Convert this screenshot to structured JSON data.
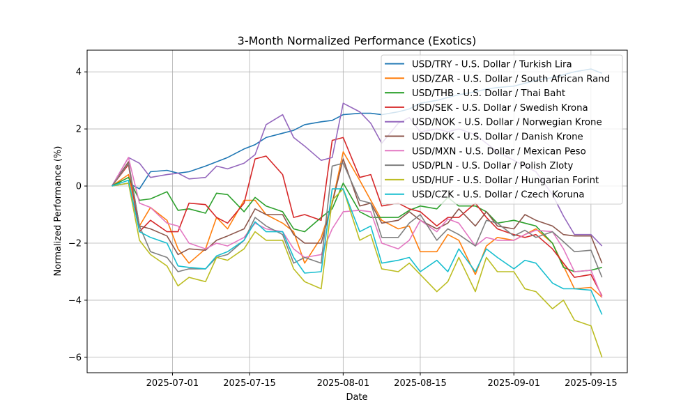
{
  "chart_data": {
    "type": "line",
    "title": "3-Month Normalized Performance (Exotics)",
    "xlabel": "Date",
    "ylabel": "Normalized Performance (%)",
    "xlim": [
      "2025-06-15",
      "2025-09-21"
    ],
    "ylim": [
      -6.54,
      4.76
    ],
    "x_ticks": [
      "2025-07-01",
      "2025-07-15",
      "2025-08-01",
      "2025-08-15",
      "2025-09-01",
      "2025-09-15"
    ],
    "y_ticks": [
      -6,
      -4,
      -2,
      0,
      2,
      4
    ],
    "grid": true,
    "legend_placement": "top-right",
    "x": [
      "2025-06-20",
      "2025-06-23",
      "2025-06-25",
      "2025-06-27",
      "2025-06-30",
      "2025-07-02",
      "2025-07-04",
      "2025-07-07",
      "2025-07-09",
      "2025-07-11",
      "2025-07-14",
      "2025-07-16",
      "2025-07-18",
      "2025-07-21",
      "2025-07-23",
      "2025-07-25",
      "2025-07-28",
      "2025-07-30",
      "2025-08-01",
      "2025-08-04",
      "2025-08-06",
      "2025-08-08",
      "2025-08-11",
      "2025-08-13",
      "2025-08-15",
      "2025-08-18",
      "2025-08-20",
      "2025-08-22",
      "2025-08-25",
      "2025-08-27",
      "2025-08-29",
      "2025-09-01",
      "2025-09-03",
      "2025-09-05",
      "2025-09-08",
      "2025-09-10",
      "2025-09-12",
      "2025-09-15",
      "2025-09-17"
    ],
    "series": [
      {
        "name": "USD/TRY - U.S. Dollar / Turkish Lira",
        "color": "#1f77b4",
        "values": [
          0,
          0.1,
          -0.1,
          0.5,
          0.55,
          0.45,
          0.5,
          0.7,
          0.85,
          1.0,
          1.3,
          1.45,
          1.7,
          1.85,
          1.95,
          2.15,
          2.25,
          2.3,
          2.5,
          2.55,
          2.55,
          2.5,
          2.6,
          2.7,
          2.9,
          3.0,
          3.1,
          3.2,
          3.3,
          3.4,
          3.45,
          3.5,
          3.6,
          3.7,
          3.8,
          3.9,
          4.0,
          4.1,
          3.95
        ]
      },
      {
        "name": "USD/ZAR - U.S. Dollar / South African Rand",
        "color": "#ff7f0e",
        "values": [
          0,
          0.4,
          -1.4,
          -0.75,
          -1.2,
          -2.2,
          -2.7,
          -2.2,
          -1.1,
          -1.5,
          -0.5,
          -0.5,
          -1.0,
          -1.3,
          -1.6,
          -2.7,
          -1.8,
          -0.6,
          1.2,
          0.2,
          -0.5,
          -1.2,
          -1.5,
          -1.4,
          -2.3,
          -2.3,
          -1.7,
          -1.9,
          -3.1,
          -2.1,
          -1.8,
          -1.9,
          -1.7,
          -1.5,
          -2.0,
          -2.8,
          -3.6,
          -3.55,
          -3.9
        ]
      },
      {
        "name": "USD/THB - U.S. Dollar / Thai Baht",
        "color": "#2ca02c",
        "values": [
          0,
          0.3,
          -0.5,
          -0.45,
          -0.2,
          -0.85,
          -0.8,
          -0.95,
          -0.25,
          -0.3,
          -0.9,
          -0.4,
          -0.7,
          -0.9,
          -1.5,
          -1.6,
          -1.1,
          -0.8,
          0.1,
          -0.9,
          -1.1,
          -1.1,
          -1.1,
          -0.85,
          -0.7,
          -0.8,
          -0.4,
          -0.7,
          -0.7,
          -0.9,
          -1.3,
          -1.2,
          -1.3,
          -1.4,
          -2.0,
          -2.85,
          -3.0,
          -2.95,
          -2.85
        ]
      },
      {
        "name": "USD/SEK - U.S. Dollar / Swedish Krona",
        "color": "#d62728",
        "values": [
          0,
          0.75,
          -1.6,
          -1.2,
          -1.6,
          -1.6,
          -0.6,
          -0.65,
          -1.1,
          -1.3,
          -0.6,
          0.95,
          1.05,
          0.4,
          -1.1,
          -1.0,
          -1.2,
          1.6,
          1.7,
          0.3,
          0.4,
          -0.7,
          -0.6,
          -0.8,
          -0.9,
          -1.4,
          -1.1,
          -1.1,
          -0.6,
          -1.1,
          -1.5,
          -1.7,
          -1.8,
          -1.7,
          -2.2,
          -2.7,
          -3.2,
          -3.1,
          -3.85
        ]
      },
      {
        "name": "USD/NOK - U.S. Dollar / Norwegian Krone",
        "color": "#9467bd",
        "values": [
          0,
          1.0,
          0.8,
          0.3,
          0.4,
          0.45,
          0.25,
          0.3,
          0.7,
          0.6,
          0.8,
          1.1,
          2.15,
          2.5,
          1.7,
          1.4,
          0.9,
          1.0,
          2.9,
          2.6,
          2.2,
          1.5,
          2.2,
          2.4,
          1.9,
          2.0,
          1.9,
          2.0,
          1.8,
          1.5,
          1.2,
          0.9,
          0.7,
          0.5,
          -0.3,
          -1.05,
          -1.7,
          -1.7,
          -2.1
        ]
      },
      {
        "name": "USD/DKK - U.S. Dollar / Danish Krone",
        "color": "#8c564b",
        "values": [
          0,
          0.85,
          -1.4,
          -1.5,
          -1.75,
          -2.4,
          -2.2,
          -2.25,
          -1.9,
          -1.75,
          -1.5,
          -0.8,
          -1.0,
          -1.0,
          -1.7,
          -2.0,
          -2.0,
          -0.6,
          0.95,
          -0.7,
          -0.6,
          -1.3,
          -1.2,
          -0.9,
          -1.2,
          -1.5,
          -1.3,
          -0.8,
          -1.4,
          -0.9,
          -1.4,
          -1.5,
          -1.0,
          -1.2,
          -1.4,
          -1.7,
          -1.75,
          -1.75,
          -2.7
        ]
      },
      {
        "name": "USD/MXN - U.S. Dollar / Mexican Peso",
        "color": "#e377c2",
        "values": [
          0,
          1.0,
          -0.6,
          -0.75,
          -1.3,
          -1.4,
          -2.0,
          -2.2,
          -2.0,
          -2.1,
          -1.8,
          -1.3,
          -1.5,
          -1.6,
          -2.2,
          -2.5,
          -2.4,
          -1.5,
          -0.9,
          -0.85,
          -0.9,
          -2.0,
          -2.2,
          -1.9,
          -1.2,
          -1.6,
          -1.15,
          -1.3,
          -2.1,
          -1.8,
          -1.9,
          -1.9,
          -1.7,
          -1.55,
          -1.6,
          -2.2,
          -3.0,
          -2.95,
          -3.9
        ]
      },
      {
        "name": "USD/PLN - U.S. Dollar / Polish Zloty",
        "color": "#7f7f7f",
        "values": [
          0,
          0.8,
          -1.4,
          -2.3,
          -2.5,
          -3.0,
          -2.9,
          -2.9,
          -2.5,
          -2.4,
          -1.9,
          -1.1,
          -1.4,
          -1.7,
          -2.7,
          -2.5,
          -2.7,
          0.7,
          0.8,
          -0.5,
          -0.6,
          -1.8,
          -1.8,
          -1.3,
          -1.0,
          -1.9,
          -1.5,
          -1.7,
          -2.1,
          -1.2,
          -1.3,
          -1.75,
          -1.55,
          -1.8,
          -1.6,
          -1.95,
          -2.3,
          -2.25,
          -3.2
        ]
      },
      {
        "name": "USD/HUF - U.S. Dollar / Hungarian Forint",
        "color": "#bcbd22",
        "values": [
          0,
          0.1,
          -1.9,
          -2.4,
          -2.8,
          -3.5,
          -3.2,
          -3.35,
          -2.5,
          -2.6,
          -2.2,
          -1.6,
          -1.9,
          -1.9,
          -2.9,
          -3.35,
          -3.6,
          -0.5,
          -0.1,
          -1.9,
          -1.7,
          -2.9,
          -3.0,
          -2.7,
          -3.1,
          -3.7,
          -3.35,
          -2.5,
          -3.7,
          -2.5,
          -3.0,
          -3.0,
          -3.6,
          -3.7,
          -4.3,
          -4.0,
          -4.7,
          -4.9,
          -6.0
        ]
      },
      {
        "name": "USD/CZK - U.S. Dollar / Czech Koruna",
        "color": "#17becf",
        "values": [
          0,
          0.2,
          -1.6,
          -1.8,
          -2.0,
          -2.8,
          -2.85,
          -2.9,
          -2.45,
          -2.3,
          -1.9,
          -1.25,
          -1.6,
          -1.6,
          -2.5,
          -3.05,
          -3.0,
          -0.1,
          -0.1,
          -1.6,
          -1.4,
          -2.7,
          -2.6,
          -2.5,
          -3.0,
          -2.6,
          -3.0,
          -2.2,
          -3.0,
          -2.2,
          -2.5,
          -2.9,
          -2.6,
          -2.7,
          -3.4,
          -3.6,
          -3.6,
          -3.65,
          -4.5
        ]
      }
    ]
  }
}
